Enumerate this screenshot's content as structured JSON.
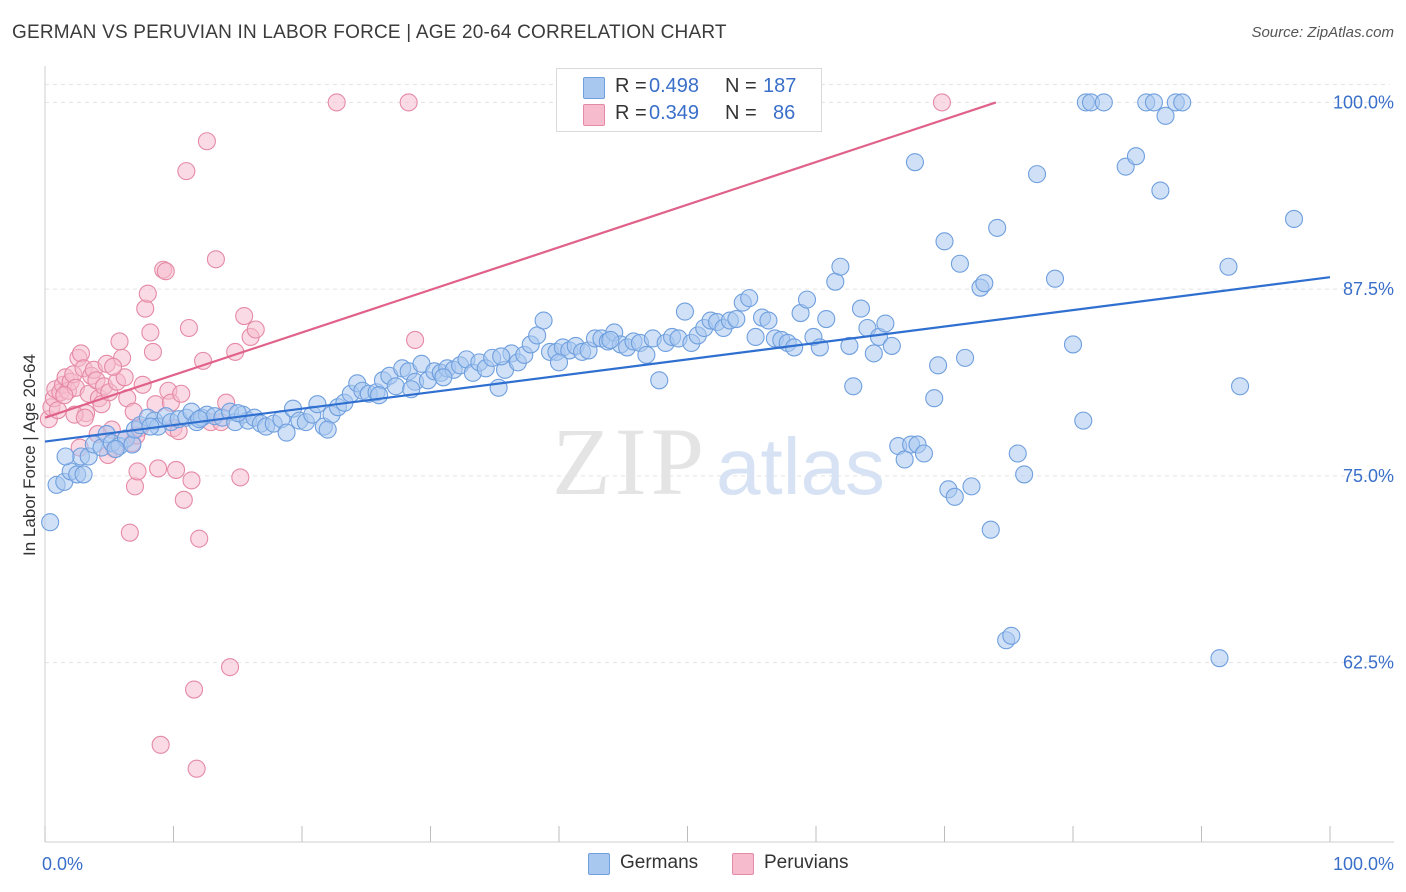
{
  "title": "GERMAN VS PERUVIAN IN LABOR FORCE | AGE 20-64 CORRELATION CHART",
  "source": "Source: ZipAtlas.com",
  "watermark": {
    "zip": "ZIP",
    "atlas": "atlas"
  },
  "legend": {
    "rows": [
      {
        "r_label": "R =",
        "r_value": "0.498",
        "n_label": "N =",
        "n_value": "187",
        "color": "#a9c8f0",
        "border": "#6f9fde"
      },
      {
        "r_label": "R =",
        "r_value": "0.349",
        "n_label": "N =",
        "n_value": "86",
        "color": "#f6bccd",
        "border": "#e58aa6"
      }
    ]
  },
  "bottom_legend": [
    {
      "label": "Germans",
      "color": "#a9c8f0",
      "border": "#6f9fde"
    },
    {
      "label": "Peruvians",
      "color": "#f6bccd",
      "border": "#e58aa6"
    }
  ],
  "chart_data": {
    "type": "scatter",
    "title": "GERMAN VS PERUVIAN IN LABOR FORCE | AGE 20-64 CORRELATION CHART",
    "xlabel": "",
    "ylabel": "In Labor Force | Age 20-64",
    "xlim": [
      0,
      100
    ],
    "ylim": [
      51.5,
      101.5
    ],
    "x_tick_labels": [
      "0.0%",
      "100.0%"
    ],
    "y_ticks": [
      62.5,
      75.0,
      87.5,
      100.0
    ],
    "y_tick_labels": [
      "62.5%",
      "75.0%",
      "87.5%",
      "100.0%"
    ],
    "grid": true,
    "series": [
      {
        "name": "Germans",
        "color": "#6f9fde",
        "fill": "#a9c8f0",
        "trend": {
          "x": [
            0,
            100
          ],
          "y": [
            77.3,
            88.3
          ],
          "color": "#2f6fd0"
        },
        "points": [
          [
            0.4,
            71.9
          ],
          [
            0.9,
            74.4
          ],
          [
            1.5,
            74.6
          ],
          [
            2,
            75.3
          ],
          [
            2.5,
            75.1
          ],
          [
            2.8,
            76.3
          ],
          [
            3.4,
            76.3
          ],
          [
            3.8,
            77.1
          ],
          [
            4.4,
            76.9
          ],
          [
            4.8,
            77.8
          ],
          [
            5.2,
            77.2
          ],
          [
            5.8,
            77
          ],
          [
            6.3,
            77.5
          ],
          [
            6.8,
            77.1
          ],
          [
            7,
            78.1
          ],
          [
            7.4,
            78.4
          ],
          [
            8,
            78.9
          ],
          [
            8.5,
            78.7
          ],
          [
            8.8,
            78.3
          ],
          [
            9.4,
            79
          ],
          [
            9.8,
            78.6
          ],
          [
            10.4,
            78.8
          ],
          [
            11,
            78.9
          ],
          [
            11.4,
            79.3
          ],
          [
            11.8,
            78.6
          ],
          [
            12.2,
            78.9
          ],
          [
            12.6,
            79.1
          ],
          [
            13.2,
            79
          ],
          [
            13.8,
            78.9
          ],
          [
            14.4,
            79.3
          ],
          [
            14.8,
            78.6
          ],
          [
            15.4,
            79.1
          ],
          [
            15.8,
            78.7
          ],
          [
            16.3,
            78.9
          ],
          [
            16.8,
            78.5
          ],
          [
            17.2,
            78.3
          ],
          [
            17.8,
            78.5
          ],
          [
            18.4,
            78.8
          ],
          [
            18.8,
            77.9
          ],
          [
            19.3,
            79.5
          ],
          [
            19.8,
            78.7
          ],
          [
            20.3,
            78.6
          ],
          [
            20.8,
            79.1
          ],
          [
            21.2,
            79.8
          ],
          [
            21.7,
            78.3
          ],
          [
            22.3,
            79.1
          ],
          [
            22.8,
            79.6
          ],
          [
            23.3,
            79.9
          ],
          [
            23.8,
            80.5
          ],
          [
            24.3,
            81.2
          ],
          [
            24.7,
            80.7
          ],
          [
            25.2,
            80.5
          ],
          [
            25.8,
            80.6
          ],
          [
            26.3,
            81.4
          ],
          [
            26.8,
            81.7
          ],
          [
            27.3,
            81
          ],
          [
            27.8,
            82.2
          ],
          [
            28.3,
            82
          ],
          [
            28.8,
            81.3
          ],
          [
            29.3,
            82.5
          ],
          [
            29.8,
            81.4
          ],
          [
            30.3,
            82
          ],
          [
            30.8,
            81.9
          ],
          [
            31.3,
            82.2
          ],
          [
            31.8,
            82.1
          ],
          [
            32.3,
            82.4
          ],
          [
            32.8,
            82.8
          ],
          [
            33.3,
            81.9
          ],
          [
            33.8,
            82.6
          ],
          [
            34.3,
            82.2
          ],
          [
            34.8,
            82.9
          ],
          [
            35.3,
            80.9
          ],
          [
            35.8,
            82.1
          ],
          [
            36.3,
            83.2
          ],
          [
            36.8,
            82.6
          ],
          [
            37.3,
            83.1
          ],
          [
            37.8,
            83.8
          ],
          [
            38.3,
            84.4
          ],
          [
            38.8,
            85.4
          ],
          [
            39.3,
            83.3
          ],
          [
            39.8,
            83.3
          ],
          [
            40.3,
            83.6
          ],
          [
            40.8,
            83.4
          ],
          [
            41.3,
            83.7
          ],
          [
            41.8,
            83.3
          ],
          [
            42.3,
            83.4
          ],
          [
            42.8,
            84.2
          ],
          [
            43.3,
            84.2
          ],
          [
            43.8,
            84
          ],
          [
            44.3,
            84.6
          ],
          [
            44.8,
            83.8
          ],
          [
            45.3,
            83.6
          ],
          [
            45.8,
            84
          ],
          [
            46.3,
            83.9
          ],
          [
            46.8,
            83.1
          ],
          [
            47.3,
            84.2
          ],
          [
            47.8,
            81.4
          ],
          [
            48.3,
            83.9
          ],
          [
            48.8,
            84.3
          ],
          [
            49.3,
            84.2
          ],
          [
            49.8,
            86
          ],
          [
            50.3,
            83.9
          ],
          [
            50.8,
            84.4
          ],
          [
            51.3,
            84.9
          ],
          [
            51.8,
            85.4
          ],
          [
            52.3,
            85.3
          ],
          [
            52.8,
            84.9
          ],
          [
            53.3,
            85.4
          ],
          [
            53.8,
            85.5
          ],
          [
            54.3,
            86.6
          ],
          [
            54.8,
            86.9
          ],
          [
            55.3,
            84.3
          ],
          [
            55.8,
            85.6
          ],
          [
            56.3,
            85.4
          ],
          [
            56.8,
            84.2
          ],
          [
            57.3,
            84.1
          ],
          [
            57.8,
            83.9
          ],
          [
            58.3,
            83.6
          ],
          [
            58.8,
            85.9
          ],
          [
            59.3,
            86.8
          ],
          [
            59.8,
            84.3
          ],
          [
            60.3,
            83.6
          ],
          [
            60.8,
            85.5
          ],
          [
            61.5,
            88
          ],
          [
            61.9,
            89
          ],
          [
            62.6,
            83.7
          ],
          [
            62.9,
            81
          ],
          [
            63.5,
            86.2
          ],
          [
            64,
            84.9
          ],
          [
            64.5,
            83.2
          ],
          [
            64.9,
            84.3
          ],
          [
            65.4,
            85.2
          ],
          [
            65.9,
            83.7
          ],
          [
            66.4,
            77
          ],
          [
            66.9,
            76.1
          ],
          [
            67.4,
            77.1
          ],
          [
            67.9,
            77.1
          ],
          [
            68.4,
            76.5
          ],
          [
            67.7,
            96
          ],
          [
            69.2,
            80.2
          ],
          [
            69.5,
            82.4
          ],
          [
            70,
            90.7
          ],
          [
            70.3,
            74.1
          ],
          [
            70.8,
            73.6
          ],
          [
            71.2,
            89.2
          ],
          [
            71.6,
            82.9
          ],
          [
            72.1,
            74.3
          ],
          [
            72.8,
            87.6
          ],
          [
            73.1,
            87.9
          ],
          [
            73.6,
            71.4
          ],
          [
            74.1,
            91.6
          ],
          [
            74.8,
            64
          ],
          [
            75.2,
            64.3
          ],
          [
            75.7,
            76.5
          ],
          [
            76.2,
            75.1
          ],
          [
            77.2,
            95.2
          ],
          [
            78.6,
            88.2
          ],
          [
            80,
            83.8
          ],
          [
            80.8,
            78.7
          ],
          [
            81,
            100
          ],
          [
            81.4,
            100
          ],
          [
            82.4,
            100
          ],
          [
            84.1,
            95.7
          ],
          [
            84.9,
            96.4
          ],
          [
            85.7,
            100
          ],
          [
            86.3,
            100
          ],
          [
            86.8,
            94.1
          ],
          [
            87.2,
            99.1
          ],
          [
            88,
            100
          ],
          [
            88.5,
            100
          ],
          [
            91.4,
            62.8
          ],
          [
            92.1,
            89
          ],
          [
            93,
            81
          ],
          [
            97.2,
            92.2
          ],
          [
            1.6,
            76.3
          ],
          [
            3,
            75.1
          ],
          [
            5.5,
            76.8
          ],
          [
            8.2,
            78.3
          ],
          [
            12,
            78.8
          ],
          [
            15,
            79.2
          ],
          [
            22,
            78.1
          ],
          [
            26,
            80.4
          ],
          [
            28.5,
            80.8
          ],
          [
            31,
            81.6
          ],
          [
            35.5,
            83
          ],
          [
            40,
            82.6
          ],
          [
            44,
            84.1
          ]
        ]
      },
      {
        "name": "Peruvians",
        "color": "#e58aa6",
        "fill": "#f6bccd",
        "trend": {
          "x": [
            0,
            74
          ],
          "y": [
            78.9,
            100
          ],
          "color": "#e0628a"
        },
        "points": [
          [
            0.3,
            78.8
          ],
          [
            0.5,
            79.6
          ],
          [
            0.7,
            80.2
          ],
          [
            0.8,
            80.8
          ],
          [
            1,
            79.4
          ],
          [
            1.2,
            80.6
          ],
          [
            1.4,
            81.1
          ],
          [
            1.6,
            81.6
          ],
          [
            1.8,
            80.7
          ],
          [
            2,
            81.3
          ],
          [
            2.2,
            81.8
          ],
          [
            2.4,
            80.9
          ],
          [
            2.6,
            82.9
          ],
          [
            2.8,
            83.2
          ],
          [
            3,
            82.2
          ],
          [
            3.2,
            79.2
          ],
          [
            3.4,
            80.5
          ],
          [
            3.6,
            81.7
          ],
          [
            3.8,
            82.1
          ],
          [
            4,
            81.4
          ],
          [
            4.2,
            80.2
          ],
          [
            4.4,
            79.8
          ],
          [
            4.6,
            81
          ],
          [
            4.8,
            82.5
          ],
          [
            5,
            80.6
          ],
          [
            5.2,
            78.1
          ],
          [
            5.4,
            76.8
          ],
          [
            5.6,
            81.3
          ],
          [
            5.8,
            84
          ],
          [
            6,
            82.9
          ],
          [
            6.2,
            81.6
          ],
          [
            6.4,
            80.2
          ],
          [
            6.6,
            71.2
          ],
          [
            6.8,
            77.2
          ],
          [
            7,
            74.3
          ],
          [
            7.2,
            75.3
          ],
          [
            7.4,
            78.2
          ],
          [
            7.6,
            81.1
          ],
          [
            7.8,
            86.2
          ],
          [
            8,
            87.2
          ],
          [
            8.2,
            84.6
          ],
          [
            8.4,
            83.3
          ],
          [
            8.6,
            79.8
          ],
          [
            8.8,
            75.5
          ],
          [
            9,
            57
          ],
          [
            9.2,
            88.8
          ],
          [
            9.4,
            88.7
          ],
          [
            9.6,
            80.7
          ],
          [
            9.8,
            79.9
          ],
          [
            10,
            78.2
          ],
          [
            10.2,
            75.4
          ],
          [
            10.4,
            78
          ],
          [
            10.6,
            80.5
          ],
          [
            10.8,
            73.4
          ],
          [
            11,
            95.4
          ],
          [
            11.2,
            84.9
          ],
          [
            11.4,
            74.7
          ],
          [
            11.6,
            60.7
          ],
          [
            11.8,
            55.4
          ],
          [
            12,
            70.8
          ],
          [
            12.3,
            82.7
          ],
          [
            12.6,
            97.4
          ],
          [
            12.9,
            78.6
          ],
          [
            13.3,
            89.5
          ],
          [
            13.7,
            78.6
          ],
          [
            14.1,
            79.9
          ],
          [
            14.4,
            62.2
          ],
          [
            14.8,
            83.3
          ],
          [
            15.2,
            74.9
          ],
          [
            15.5,
            85.7
          ],
          [
            16,
            84.3
          ],
          [
            16.4,
            84.8
          ],
          [
            22.7,
            100
          ],
          [
            28.3,
            100
          ],
          [
            28.8,
            84.1
          ],
          [
            69.8,
            100
          ],
          [
            2.7,
            76.9
          ],
          [
            4.9,
            76.4
          ],
          [
            6.3,
            77.5
          ],
          [
            7.1,
            77.7
          ],
          [
            1.5,
            80.4
          ],
          [
            2.3,
            79.1
          ],
          [
            3.1,
            78.9
          ],
          [
            4.1,
            77.8
          ],
          [
            5.3,
            82.3
          ],
          [
            6.9,
            79.3
          ]
        ]
      }
    ]
  }
}
